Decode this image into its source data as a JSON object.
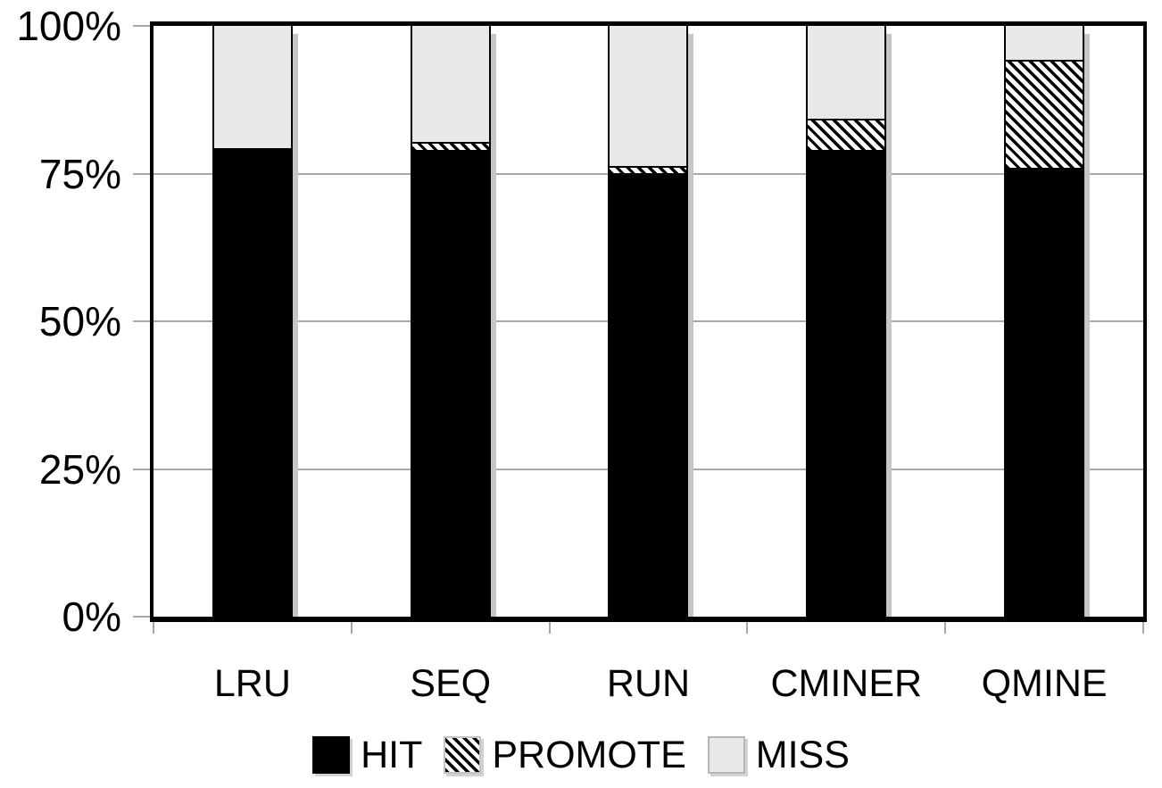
{
  "chart_data": {
    "type": "bar",
    "stacked": true,
    "title": "",
    "xlabel": "",
    "ylabel": "",
    "categories": [
      "LRU",
      "SEQ",
      "RUN",
      "CMINER",
      "QMINE"
    ],
    "series": [
      {
        "name": "HIT",
        "pattern": "solid-black",
        "values": [
          79,
          79,
          75,
          79,
          76
        ]
      },
      {
        "name": "PROMOTE",
        "pattern": "diagonal-hatch",
        "values": [
          0,
          1,
          1,
          5,
          18
        ]
      },
      {
        "name": "MISS",
        "pattern": "solid-lightgray",
        "values": [
          21,
          20,
          24,
          16,
          6
        ]
      }
    ],
    "ylim": [
      0,
      100
    ],
    "y_ticks": [
      {
        "value": 0,
        "label": "0%"
      },
      {
        "value": 25,
        "label": "25%"
      },
      {
        "value": 50,
        "label": "50%"
      },
      {
        "value": 75,
        "label": "75%"
      },
      {
        "value": 100,
        "label": "100%"
      }
    ],
    "grid": "horizontal",
    "legend_position": "bottom"
  },
  "legend": {
    "items": [
      {
        "label": "HIT",
        "swatch": "solid-black"
      },
      {
        "label": "PROMOTE",
        "swatch": "diagonal-hatch"
      },
      {
        "label": "MISS",
        "swatch": "solid-lightgray"
      }
    ]
  },
  "colors": {
    "hit": "#000000",
    "miss": "#e8e8e8",
    "hatch_foreground": "#000000",
    "hatch_background": "#ffffff",
    "gridline": "#a8a8a8",
    "bar_shadow": "#c6c6c6",
    "axis": "#000000",
    "background": "#ffffff"
  }
}
